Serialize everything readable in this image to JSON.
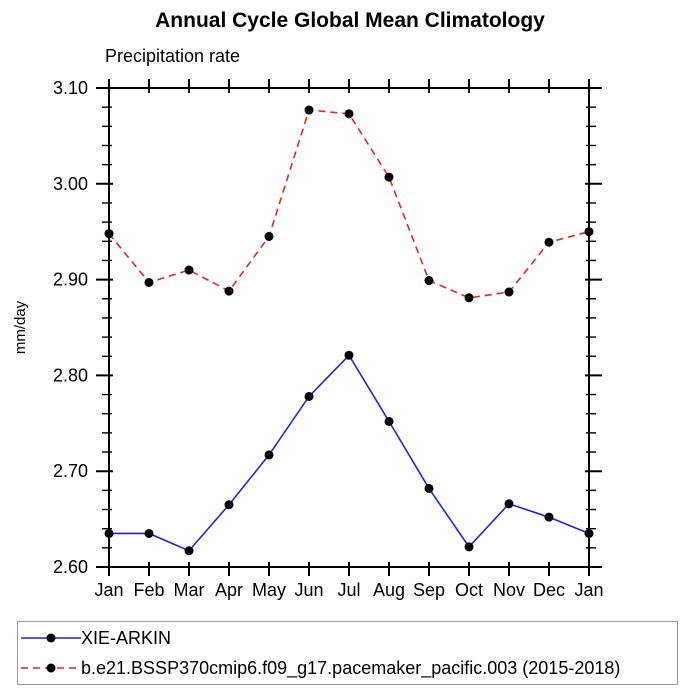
{
  "title": "Annual Cycle Global Mean Climatology",
  "chart_data": {
    "type": "line",
    "title": "Annual Cycle Global Mean Climatology",
    "subtitle": "Precipitation rate",
    "ylabel": "mm/day",
    "xlabel": "",
    "x_categories": [
      "Jan",
      "Feb",
      "Mar",
      "Apr",
      "May",
      "Jun",
      "Jul",
      "Aug",
      "Sep",
      "Oct",
      "Nov",
      "Dec",
      "Jan"
    ],
    "ylim": [
      2.6,
      3.1
    ],
    "ytick_labels": [
      "2.60",
      "2.70",
      "2.80",
      "2.90",
      "3.00",
      "3.10"
    ],
    "ytick_step": 0.1,
    "ytick_minor_step": 0.02,
    "grid": "off",
    "legend_position": "bottom-left-box",
    "series": [
      {
        "name": "XIE-ARKIN",
        "color": "#2222dd",
        "dash": "solid",
        "marker": "circle",
        "marker_color": "#000000",
        "values": [
          2.635,
          2.635,
          2.617,
          2.665,
          2.717,
          2.778,
          2.821,
          2.752,
          2.682,
          2.621,
          2.666,
          2.652,
          2.635
        ]
      },
      {
        "name": "b.e21.BSSP370cmip6.f09_g17.pacemaker_pacific.003 (2015-2018)",
        "color": "#ee2222",
        "dash": "dashed",
        "marker": "circle",
        "marker_color": "#000000",
        "values": [
          2.948,
          2.897,
          2.91,
          2.888,
          2.945,
          3.077,
          3.073,
          3.007,
          2.899,
          2.881,
          2.887,
          2.939,
          2.95
        ]
      }
    ]
  }
}
